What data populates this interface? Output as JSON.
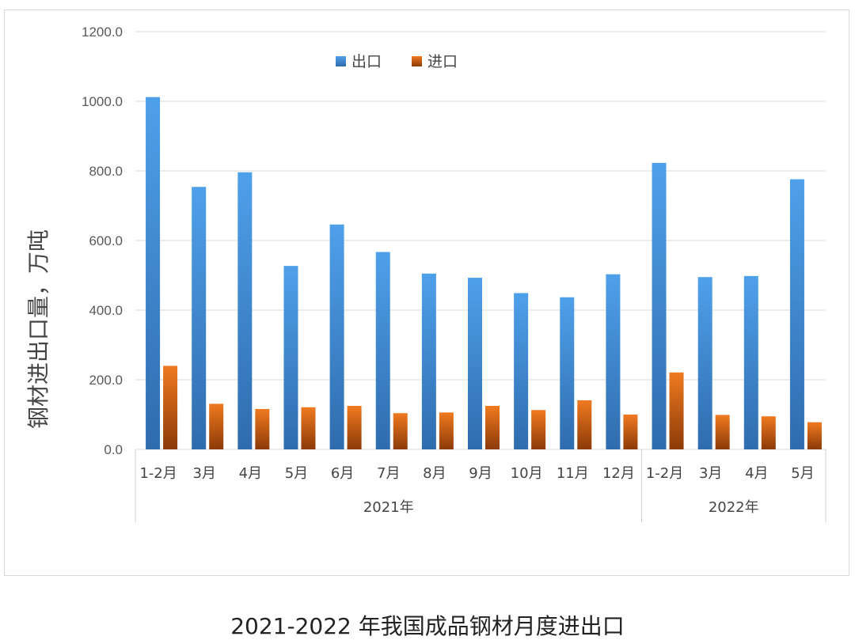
{
  "caption": "2021-2022 年我国成品钢材月度进出口",
  "chart_data": {
    "type": "bar",
    "ylabel": "钢材进出口量，万吨",
    "ylim": [
      0,
      1200
    ],
    "yticks": [
      "0.0",
      "200.0",
      "400.0",
      "600.0",
      "800.0",
      "1000.0",
      "1200.0"
    ],
    "grid": true,
    "legend_position": "top-center",
    "categories": [
      "1-2月",
      "3月",
      "4月",
      "5月",
      "6月",
      "7月",
      "8月",
      "9月",
      "10月",
      "11月",
      "12月",
      "1-2月",
      "3月",
      "4月",
      "5月"
    ],
    "groups": [
      {
        "label": "2021年",
        "count": 11
      },
      {
        "label": "2022年",
        "count": 4
      }
    ],
    "series": [
      {
        "name": "出口",
        "color": "#3a85d6",
        "values": [
          1012,
          754,
          796,
          527,
          646,
          567,
          505,
          493,
          449,
          437,
          503,
          823,
          495,
          498,
          776
        ]
      },
      {
        "name": "进口",
        "color": "#c95a10",
        "values": [
          240,
          131,
          116,
          121,
          125,
          104,
          106,
          125,
          113,
          141,
          100,
          221,
          99,
          95,
          78
        ]
      }
    ]
  }
}
